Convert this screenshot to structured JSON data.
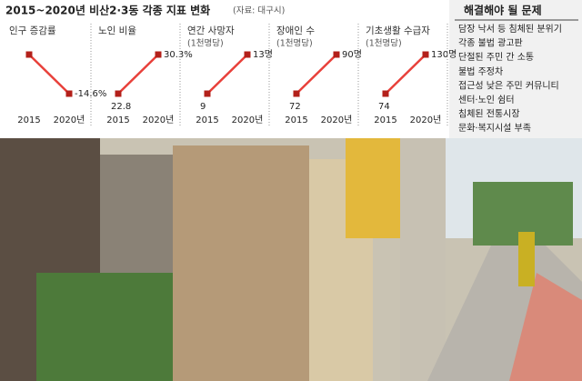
{
  "header": {
    "title": "2015~2020년 비산2·3동 각종 지표 변화",
    "source": "(자료: 대구시)"
  },
  "chart_data": [
    {
      "type": "line",
      "title": "인구 증감률",
      "categories": [
        "2015",
        "2020년"
      ],
      "values": [
        0,
        -14.6
      ],
      "value_labels": [
        null,
        "-14.6%"
      ],
      "color": "#e8403a"
    },
    {
      "type": "line",
      "title": "노인 비율",
      "categories": [
        "2015",
        "2020년"
      ],
      "values": [
        22.8,
        30.3
      ],
      "value_labels": [
        "22.8",
        "30.3%"
      ],
      "color": "#e8403a"
    },
    {
      "type": "line",
      "title": "연간 사망자",
      "subtitle": "(1천명당)",
      "categories": [
        "2015",
        "2020년"
      ],
      "values": [
        9,
        13
      ],
      "value_labels": [
        "9",
        "13명"
      ],
      "color": "#e8403a"
    },
    {
      "type": "line",
      "title": "장애인 수",
      "subtitle": "(1천명당)",
      "categories": [
        "2015",
        "2020년"
      ],
      "values": [
        72,
        90
      ],
      "value_labels": [
        "72",
        "90명"
      ],
      "color": "#e8403a"
    },
    {
      "type": "line",
      "title": "기초생활 수급자",
      "subtitle": "(1천명당)",
      "categories": [
        "2015",
        "2020년"
      ],
      "values": [
        74,
        130
      ],
      "value_labels": [
        "74",
        "130명"
      ],
      "color": "#e8403a"
    }
  ],
  "issues": {
    "title": "해결해야 될 문제",
    "items": [
      "담장 낙서 등 침체된 분위기",
      "각종 불법 광고판",
      "단절된 주민 간 소통",
      "불법 주정차",
      "접근성 낮은 주민 커뮤니티",
      "센터·노인 쉼터",
      "침체된 전통시장",
      "문화·복지시설 부족"
    ]
  }
}
